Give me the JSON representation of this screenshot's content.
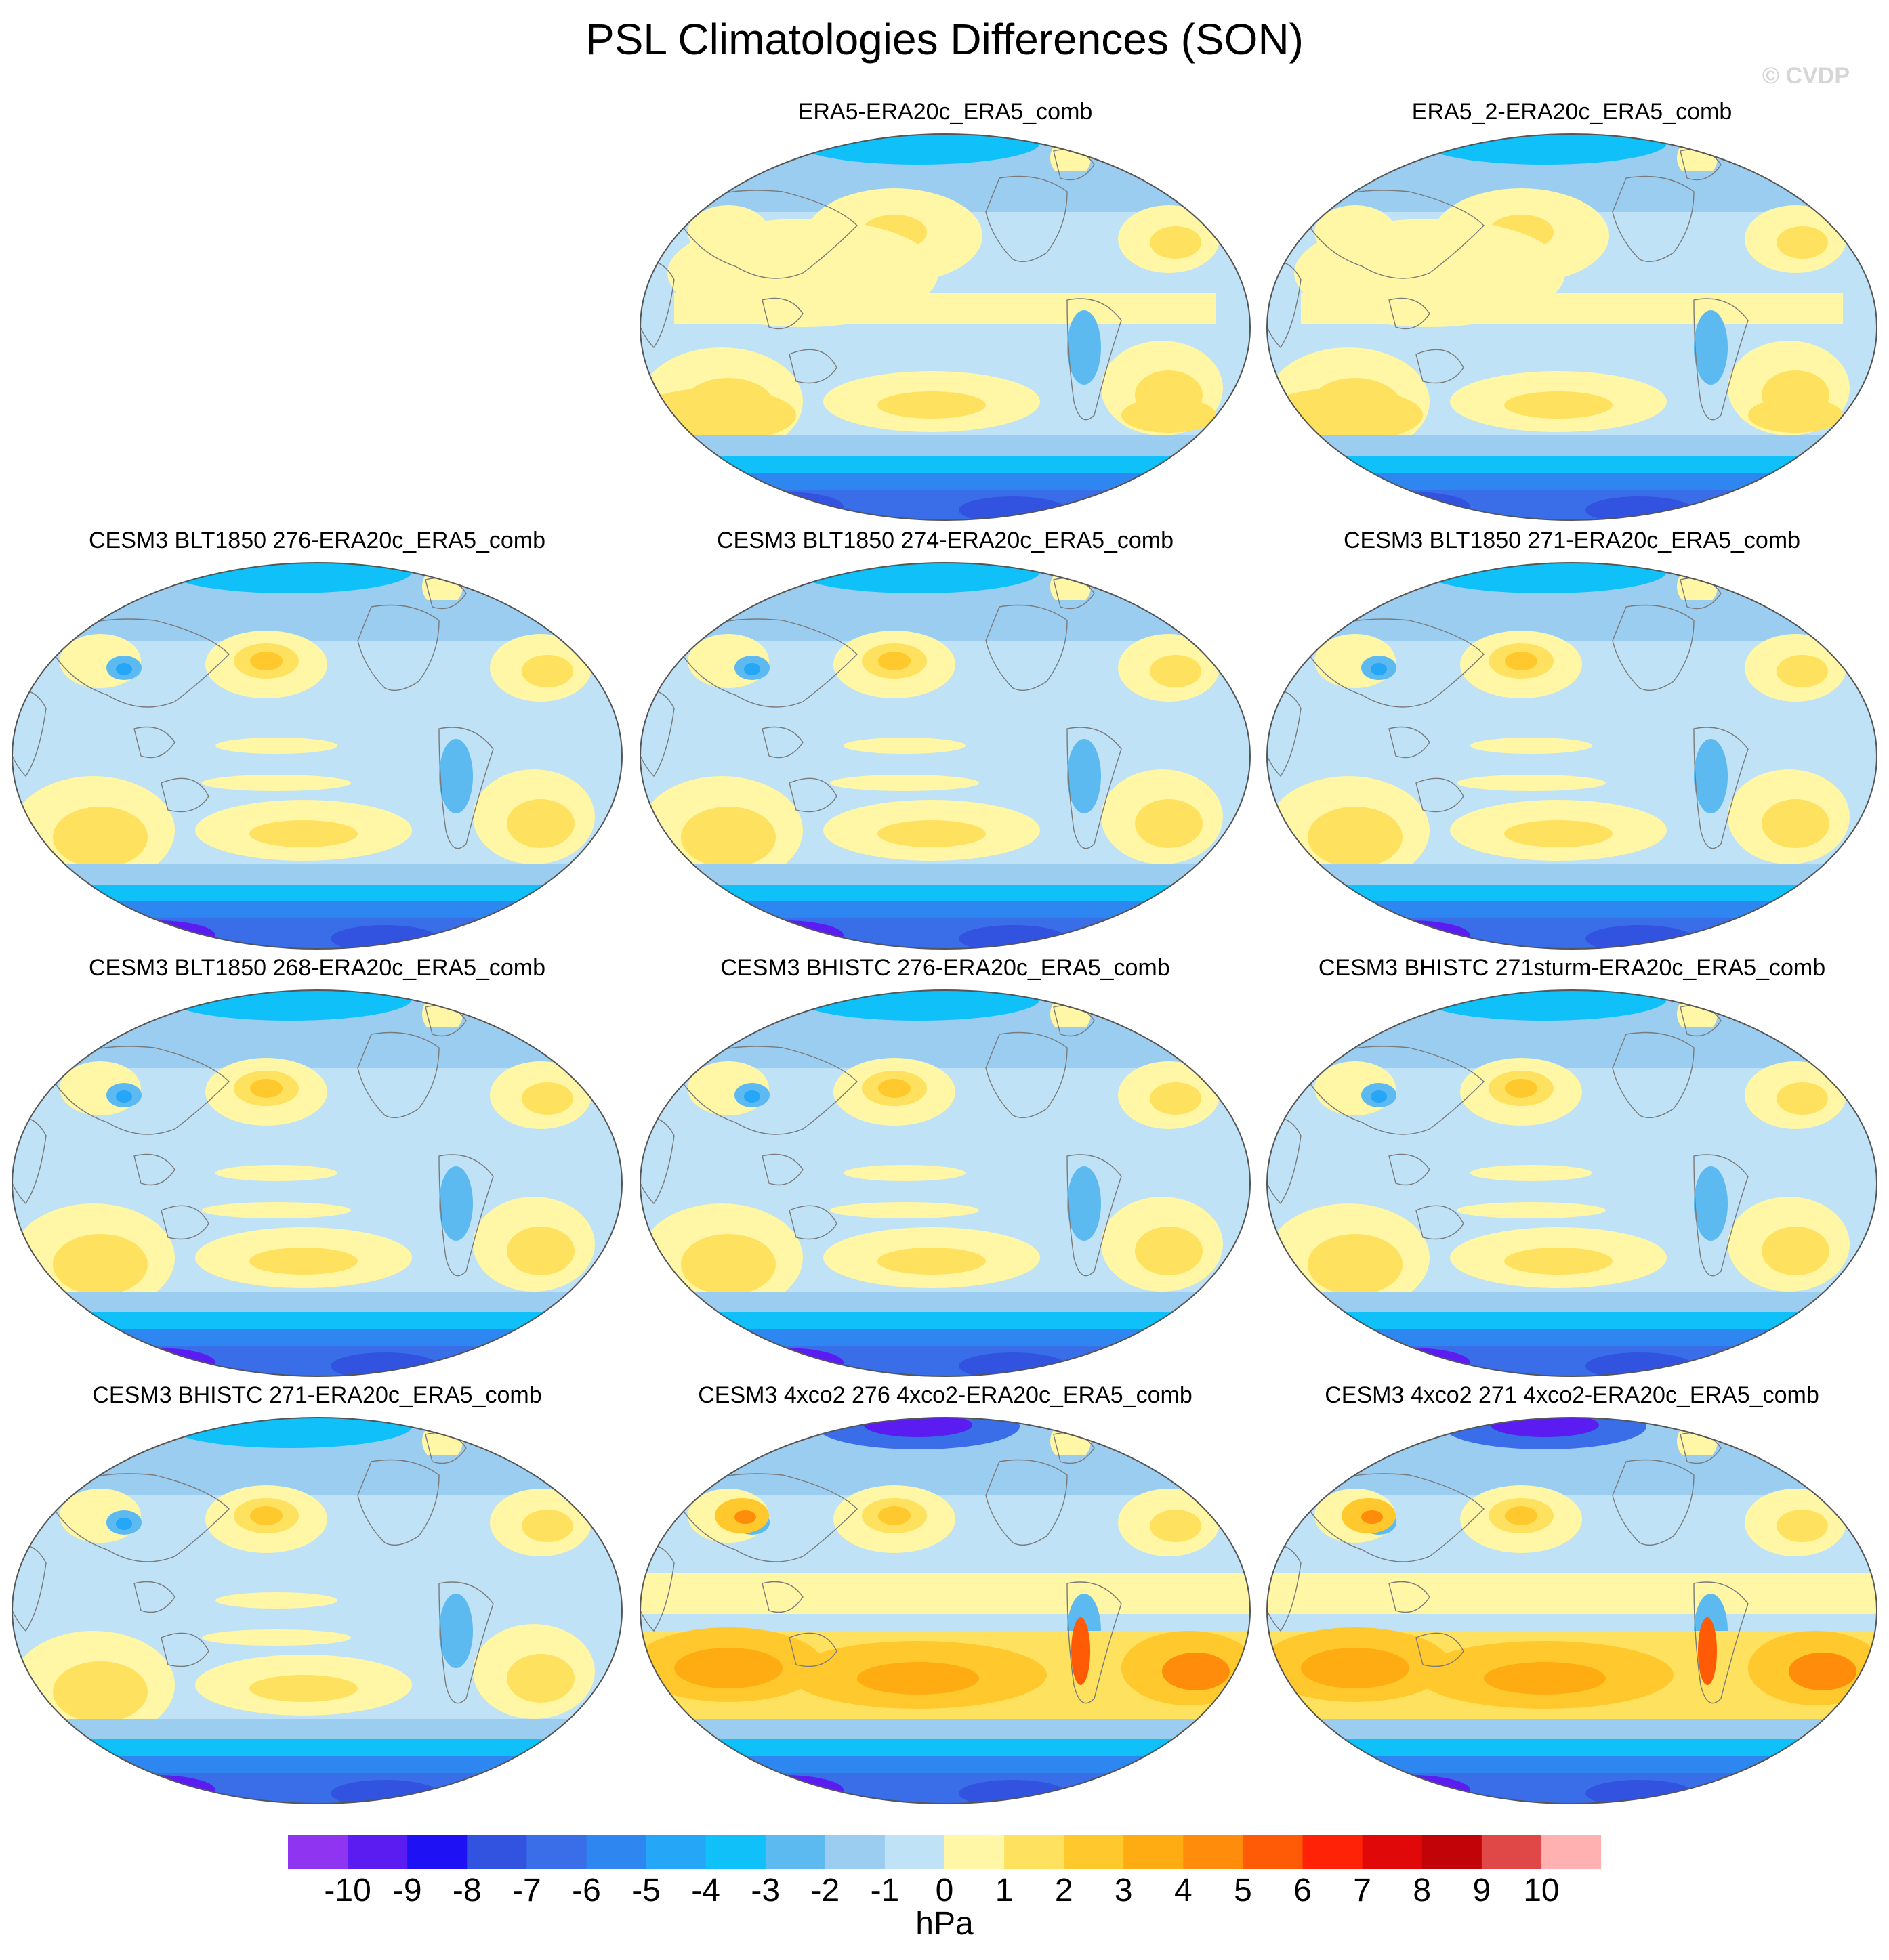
{
  "title": "PSL Climatologies Differences (SON)",
  "credit": "© CVDP",
  "units": "hPa",
  "colorbar": {
    "levels": [
      -10,
      -9,
      -8,
      -7,
      -6,
      -5,
      -4,
      -3,
      -2,
      -1,
      0,
      1,
      2,
      3,
      4,
      5,
      6,
      7,
      8,
      9,
      10
    ],
    "labels": [
      "-10",
      "-9",
      "-8",
      "-7",
      "-6",
      "-5",
      "-4",
      "-3",
      "-2",
      "-1",
      "0",
      "1",
      "2",
      "3",
      "4",
      "5",
      "6",
      "7",
      "8",
      "9",
      "10"
    ],
    "colors": [
      "#8f34f0",
      "#5b1cf2",
      "#1e12f4",
      "#3253e0",
      "#3a6ee8",
      "#2e86f0",
      "#26a6f6",
      "#10c0f8",
      "#5cbaf0",
      "#9bcdf0",
      "#bfe2f6",
      "#fff6a6",
      "#ffe160",
      "#ffc82c",
      "#ffac12",
      "#ff8c0a",
      "#ff5a06",
      "#ff2206",
      "#e00808",
      "#c00408",
      "#e04848",
      "#ffb0b0"
    ]
  },
  "panels": [
    {
      "id": "era5",
      "title": "ERA5-ERA20c_ERA5_comb",
      "variant": "obs"
    },
    {
      "id": "era5-2",
      "title": "ERA5_2-ERA20c_ERA5_comb",
      "variant": "obs"
    },
    {
      "id": "blt1850-276",
      "title": "CESM3 BLT1850 276-ERA20c_ERA5_comb",
      "variant": "model"
    },
    {
      "id": "blt1850-274",
      "title": "CESM3 BLT1850 274-ERA20c_ERA5_comb",
      "variant": "model"
    },
    {
      "id": "blt1850-271",
      "title": "CESM3 BLT1850 271-ERA20c_ERA5_comb",
      "variant": "model"
    },
    {
      "id": "blt1850-268",
      "title": "CESM3 BLT1850 268-ERA20c_ERA5_comb",
      "variant": "model"
    },
    {
      "id": "bhistc-276",
      "title": "CESM3 BHISTC 276-ERA20c_ERA5_comb",
      "variant": "model"
    },
    {
      "id": "bhistc-271sturm",
      "title": "CESM3 BHISTC 271sturm-ERA20c_ERA5_comb",
      "variant": "model"
    },
    {
      "id": "bhistc-271",
      "title": "CESM3 BHISTC 271-ERA20c_ERA5_comb",
      "variant": "model"
    },
    {
      "id": "4xco2-276",
      "title": "CESM3 4xco2 276 4xco2-ERA20c_ERA5_comb",
      "variant": "warm"
    },
    {
      "id": "4xco2-271",
      "title": "CESM3 4xco2 271 4xco2-ERA20c_ERA5_comb",
      "variant": "warm"
    }
  ]
}
